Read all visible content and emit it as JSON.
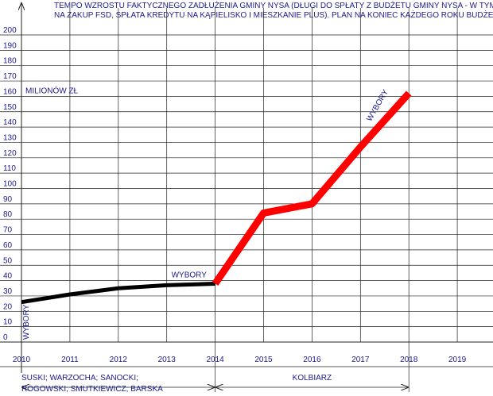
{
  "chart_data": {
    "type": "line",
    "title": [
      "TEMPO WZROSTU FAKTYCZNEGO ZADŁUŻENIA GMINY NYSA (DŁUGI DO SPŁATY  Z BUDŻETU GMINY NYSA - W TYM: OBLIGACJE",
      "NA ZAKUP FSD, SPŁATA KREDYTU NA KĄPIELISKO I MIESZKANIE PLUS). PLAN NA KONIEC KAŻDEGO ROKU BUDŻETOWEGO."
    ],
    "y_label": "MILIONÓW  ZŁ",
    "series": [
      {
        "color": "#000000",
        "x": [
          2010,
          2011,
          2012,
          2013,
          2014
        ],
        "values": [
          26,
          31,
          35,
          37,
          38
        ]
      },
      {
        "color": "#ff0000",
        "x": [
          2014,
          2015,
          2016,
          2017,
          2018
        ],
        "values": [
          38,
          84,
          90,
          127,
          162
        ]
      }
    ],
    "annotations": [
      "WYBORY",
      "WYBORY",
      "WYBORY"
    ],
    "periods": [
      {
        "lines": [
          "SUSKI; WARZOCHA; SANOCKI;",
          "ROGOWSKI; SMUTKIEWICZ; BARSKA"
        ],
        "from": 2010,
        "to": 2014
      },
      {
        "lines": [
          "KOLBIARZ"
        ],
        "from": 2014,
        "to": 2018
      }
    ],
    "xlim": [
      2010,
      2019.5
    ],
    "xticks": [
      2010,
      2011,
      2012,
      2013,
      2014,
      2015,
      2016,
      2017,
      2018,
      2019
    ],
    "ylim": [
      0,
      200
    ],
    "yticks": [
      0,
      10,
      20,
      30,
      40,
      50,
      60,
      70,
      80,
      90,
      100,
      110,
      120,
      130,
      140,
      150,
      160,
      170,
      180,
      190,
      200
    ],
    "grid": true
  }
}
